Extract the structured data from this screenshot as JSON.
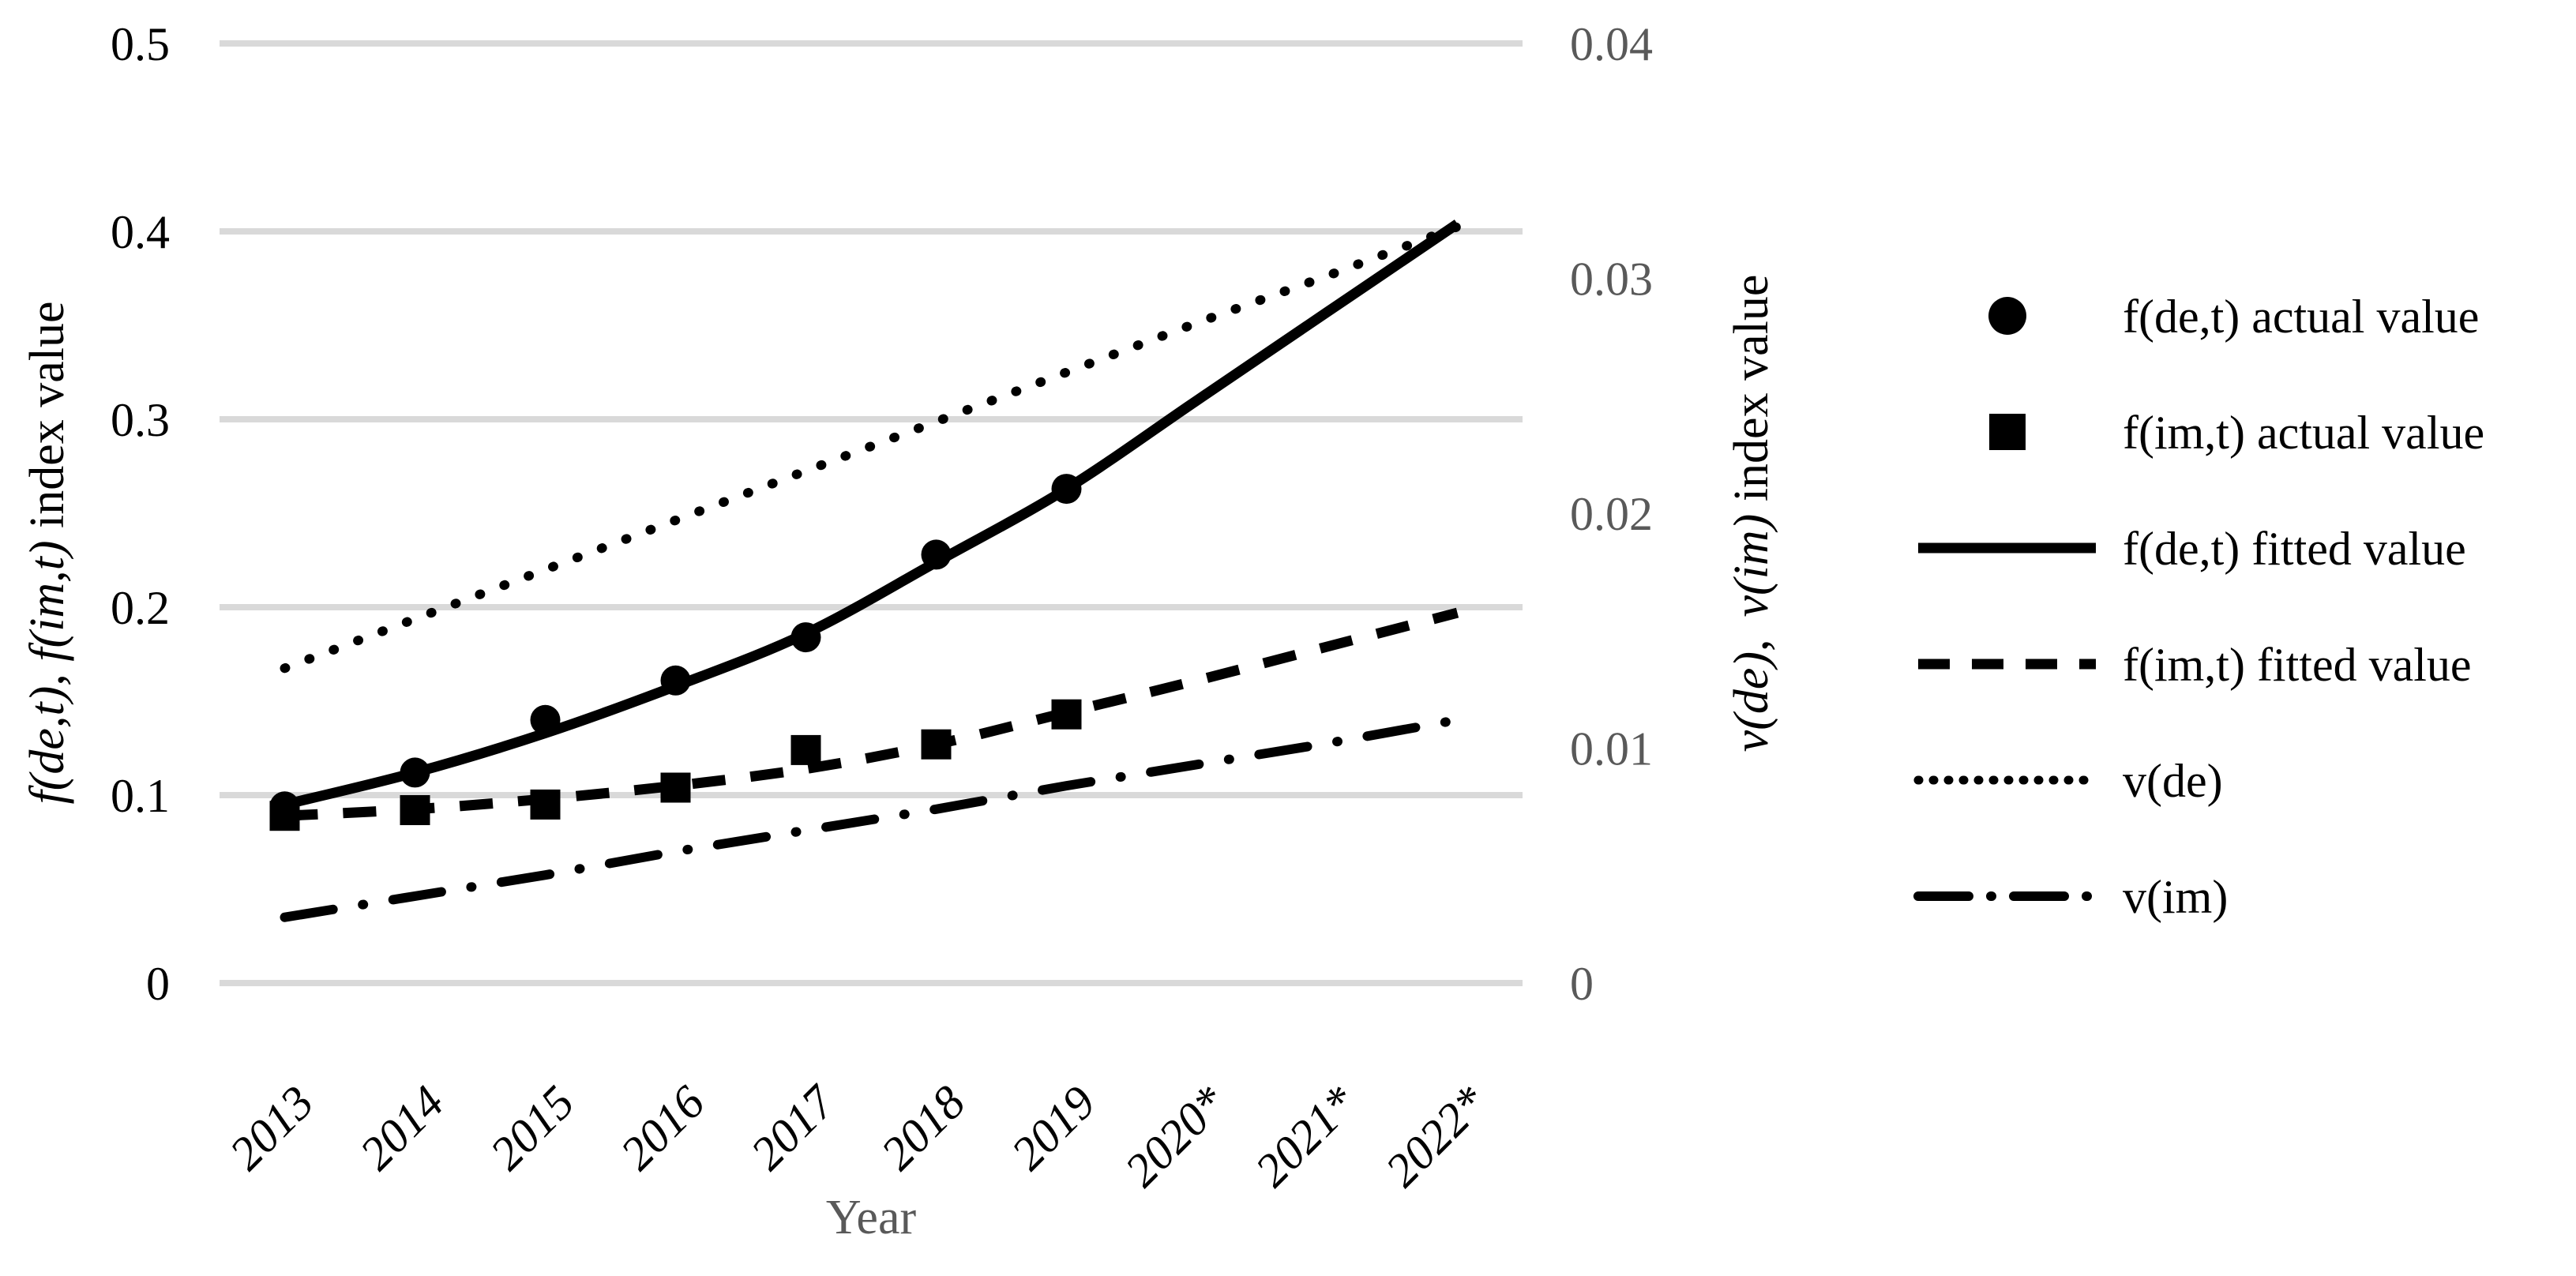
{
  "chart_data": {
    "type": "line",
    "title": "",
    "categories": [
      "2013",
      "2014",
      "2015",
      "2016",
      "2017",
      "2018",
      "2019",
      "2020*",
      "2021*",
      "2022*"
    ],
    "x_axis": {
      "title": "Year"
    },
    "left_axis": {
      "title": "f(de,t), f(im,t) index value",
      "title_italic": "f(de,t), f(im,t)",
      "title_regular": " index value",
      "ticks": [
        "0.5",
        "0.4",
        "0.3",
        "0.2",
        "0.1",
        "0"
      ],
      "tick_values": [
        0.5,
        0.4,
        0.3,
        0.2,
        0.1,
        0
      ],
      "range": [
        0,
        0.5
      ]
    },
    "right_axis": {
      "title": "v(de)、v(im) index value",
      "title_italic_1": "v(de)",
      "title_separator": "、",
      "title_italic_2": "v(im)",
      "title_regular": " index value",
      "ticks": [
        "0.04",
        "0.03",
        "0.02",
        "0.01",
        "0"
      ],
      "tick_values": [
        0.04,
        0.03,
        0.02,
        0.01,
        0
      ],
      "range": [
        0,
        0.04
      ]
    },
    "series": [
      {
        "name": "f(de,t) actual value",
        "type": "scatter",
        "marker": "circle",
        "axis": "left",
        "categories": [
          "2013",
          "2014",
          "2015",
          "2016",
          "2017",
          "2018",
          "2019"
        ],
        "values": [
          0.094,
          0.112,
          0.14,
          0.161,
          0.184,
          0.228,
          0.263
        ]
      },
      {
        "name": "f(im,t) actual value",
        "type": "scatter",
        "marker": "square",
        "axis": "left",
        "categories": [
          "2013",
          "2014",
          "2015",
          "2016",
          "2017",
          "2018",
          "2019"
        ],
        "values": [
          0.089,
          0.092,
          0.095,
          0.104,
          0.124,
          0.127,
          0.143
        ]
      },
      {
        "name": "f(de,t) fitted value",
        "type": "line",
        "style": "solid",
        "axis": "left",
        "values": [
          0.095,
          0.112,
          0.133,
          0.158,
          0.186,
          0.224,
          0.263,
          0.31,
          0.357,
          0.404
        ]
      },
      {
        "name": "f(im,t) fitted value",
        "type": "line",
        "style": "dashed",
        "axis": "left",
        "values": [
          0.089,
          0.0925,
          0.098,
          0.105,
          0.114,
          0.127,
          0.144,
          0.161,
          0.179,
          0.197
        ]
      },
      {
        "name": "v(de)",
        "type": "line",
        "style": "dotted",
        "axis": "right",
        "values": [
          0.0134,
          0.0155,
          0.0176,
          0.0197,
          0.0218,
          0.0239,
          0.026,
          0.0281,
          0.0301,
          0.0322
        ]
      },
      {
        "name": "v(im)",
        "type": "line",
        "style": "dashdot",
        "axis": "right",
        "values": [
          0.0028,
          0.0037,
          0.0046,
          0.0056,
          0.0065,
          0.0074,
          0.0084,
          0.0093,
          0.0102,
          0.0112
        ]
      }
    ],
    "legend": {
      "position": "right",
      "entries": [
        "f(de,t) actual value",
        "f(im,t) actual value",
        "f(de,t) fitted value",
        "f(im,t) fitted value",
        "v(de)",
        "v(im)"
      ]
    },
    "grid": true,
    "colors": {
      "series": "#000000",
      "gridline": "#D9D9D9",
      "left_tick_text": "#000000",
      "right_tick_text": "#595959",
      "x_tick_text": "#000000",
      "x_axis_title_text": "#595959",
      "axis_title_text": "#000000",
      "background": "#FFFFFF"
    }
  }
}
